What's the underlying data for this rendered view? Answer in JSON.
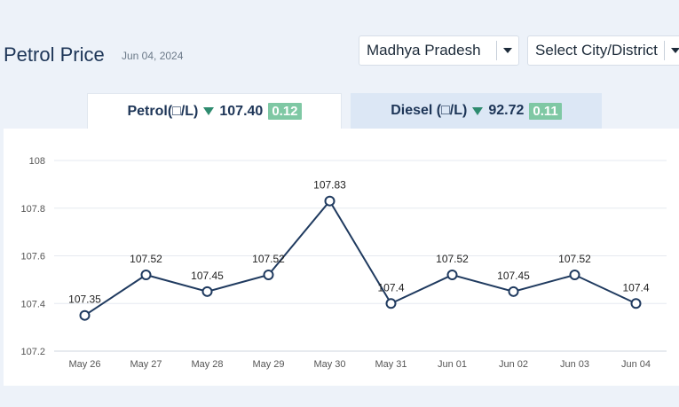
{
  "header": {
    "title": "Petrol Price",
    "date": "Jun 04, 2024"
  },
  "filters": {
    "state": "Madhya Pradesh",
    "city_placeholder": "Select City/District"
  },
  "tabs": [
    {
      "label": "Petrol(□/L)",
      "price": "107.40",
      "change": "0.12",
      "direction": "down",
      "active": true
    },
    {
      "label": "Diesel (□/L)",
      "price": "92.72",
      "change": "0.11",
      "direction": "down",
      "active": false
    }
  ],
  "colors": {
    "line": "#1f3a5f",
    "badge": "#7fc8a4",
    "down_arrow": "#2e8b6f",
    "title": "#1d3557"
  },
  "chart_data": {
    "type": "line",
    "categories": [
      "May 26",
      "May 27",
      "May 28",
      "May 29",
      "May 30",
      "May 31",
      "Jun 01",
      "Jun 02",
      "Jun 03",
      "Jun 04"
    ],
    "series": [
      {
        "values": [
          107.35,
          107.52,
          107.45,
          107.52,
          107.83,
          107.4,
          107.52,
          107.45,
          107.52,
          107.4
        ]
      }
    ],
    "data_labels": [
      "107.35",
      "107.52",
      "107.45",
      "107.52",
      "107.83",
      "107.4",
      "107.52",
      "107.45",
      "107.52",
      "107.4"
    ],
    "yticks": [
      "108",
      "107.8",
      "107.6",
      "107.4",
      "107.2"
    ],
    "ytick_values": [
      108,
      107.8,
      107.6,
      107.4,
      107.2
    ],
    "ylim": [
      107.2,
      108
    ],
    "grid": true,
    "legend": "none"
  }
}
